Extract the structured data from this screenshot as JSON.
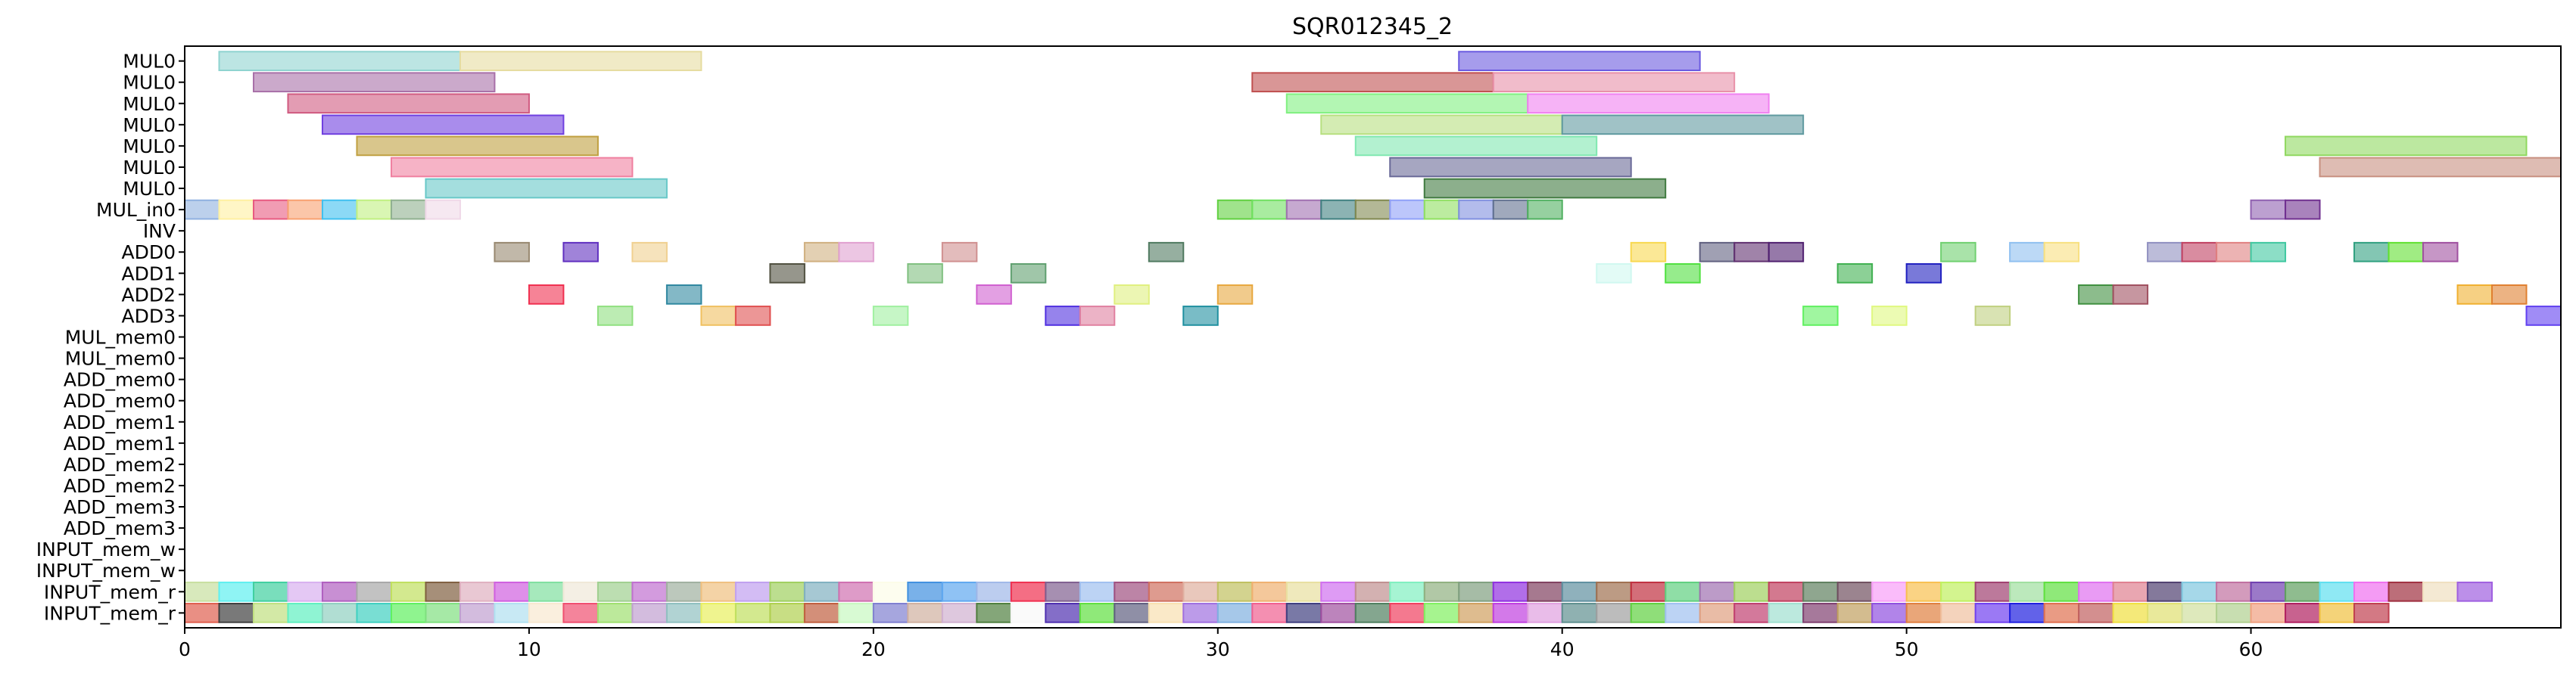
{
  "chart_data": {
    "type": "gantt",
    "title": "SQR012345_2",
    "xlabel": "",
    "ylabel": "",
    "xlim": [
      0,
      69
    ],
    "xticks": [
      0,
      10,
      20,
      30,
      40,
      50,
      60
    ],
    "grid": false,
    "rows": [
      "MUL0",
      "MUL0",
      "MUL0",
      "MUL0",
      "MUL0",
      "MUL0",
      "MUL0",
      "MUL_in0",
      "INV",
      "ADD0",
      "ADD1",
      "ADD2",
      "ADD3",
      "MUL_mem0",
      "MUL_mem0",
      "ADD_mem0",
      "ADD_mem0",
      "ADD_mem1",
      "ADD_mem1",
      "ADD_mem2",
      "ADD_mem2",
      "ADD_mem3",
      "ADD_mem3",
      "INPUT_mem_w",
      "INPUT_mem_w",
      "INPUT_mem_r",
      "INPUT_mem_r"
    ],
    "bars": [
      {
        "row": 0,
        "start": 1,
        "end": 8,
        "color": "#8fd3d0"
      },
      {
        "row": 0,
        "start": 8,
        "end": 15,
        "color": "#e6dca0"
      },
      {
        "row": 0,
        "start": 37,
        "end": 44,
        "color": "#6a5ae0"
      },
      {
        "row": 1,
        "start": 2,
        "end": 9,
        "color": "#a870a8"
      },
      {
        "row": 1,
        "start": 31,
        "end": 38,
        "color": "#c05050"
      },
      {
        "row": 1,
        "start": 38,
        "end": 45,
        "color": "#e890a8"
      },
      {
        "row": 2,
        "start": 3,
        "end": 10,
        "color": "#d05a80"
      },
      {
        "row": 2,
        "start": 32,
        "end": 39,
        "color": "#80f080"
      },
      {
        "row": 2,
        "start": 39,
        "end": 46,
        "color": "#f080f0"
      },
      {
        "row": 3,
        "start": 4,
        "end": 11,
        "color": "#7040e0"
      },
      {
        "row": 3,
        "start": 33,
        "end": 40,
        "color": "#b8e080"
      },
      {
        "row": 3,
        "start": 40,
        "end": 47,
        "color": "#609aa0"
      },
      {
        "row": 4,
        "start": 5,
        "end": 12,
        "color": "#c0a040"
      },
      {
        "row": 4,
        "start": 34,
        "end": 41,
        "color": "#80e8b0"
      },
      {
        "row": 4,
        "start": 61,
        "end": 68,
        "color": "#90d860"
      },
      {
        "row": 5,
        "start": 6,
        "end": 13,
        "color": "#f080a0"
      },
      {
        "row": 5,
        "start": 35,
        "end": 42,
        "color": "#6a6a98"
      },
      {
        "row": 5,
        "start": 62,
        "end": 69,
        "color": "#c89080"
      },
      {
        "row": 6,
        "start": 7,
        "end": 14,
        "color": "#68c8c8"
      },
      {
        "row": 6,
        "start": 36,
        "end": 43,
        "color": "#407a40"
      },
      {
        "row": 7,
        "start": 0,
        "end": 1,
        "color": "#90b0e0"
      },
      {
        "row": 7,
        "start": 1,
        "end": 2,
        "color": "#fff0a0"
      },
      {
        "row": 7,
        "start": 2,
        "end": 3,
        "color": "#e85a80"
      },
      {
        "row": 7,
        "start": 3,
        "end": 4,
        "color": "#f8a070"
      },
      {
        "row": 7,
        "start": 4,
        "end": 5,
        "color": "#40c0f0"
      },
      {
        "row": 7,
        "start": 5,
        "end": 6,
        "color": "#c0f080"
      },
      {
        "row": 7,
        "start": 6,
        "end": 7,
        "color": "#90b090"
      },
      {
        "row": 7,
        "start": 7,
        "end": 8,
        "color": "#f0d8e8"
      },
      {
        "row": 7,
        "start": 30,
        "end": 31,
        "color": "#60d040"
      },
      {
        "row": 7,
        "start": 31,
        "end": 32,
        "color": "#70e060"
      },
      {
        "row": 7,
        "start": 32,
        "end": 33,
        "color": "#a070b0"
      },
      {
        "row": 7,
        "start": 33,
        "end": 34,
        "color": "#408080"
      },
      {
        "row": 7,
        "start": 34,
        "end": 35,
        "color": "#808850"
      },
      {
        "row": 7,
        "start": 35,
        "end": 36,
        "color": "#90a0f8"
      },
      {
        "row": 7,
        "start": 36,
        "end": 37,
        "color": "#90e060"
      },
      {
        "row": 7,
        "start": 37,
        "end": 38,
        "color": "#8090e0"
      },
      {
        "row": 7,
        "start": 38,
        "end": 39,
        "color": "#607090"
      },
      {
        "row": 7,
        "start": 39,
        "end": 40,
        "color": "#50b060"
      },
      {
        "row": 7,
        "start": 60,
        "end": 61,
        "color": "#9060b0"
      },
      {
        "row": 7,
        "start": 61,
        "end": 62,
        "color": "#703090"
      },
      {
        "row": 9,
        "start": 9,
        "end": 10,
        "color": "#988870"
      },
      {
        "row": 9,
        "start": 11,
        "end": 12,
        "color": "#6030c0"
      },
      {
        "row": 9,
        "start": 13,
        "end": 14,
        "color": "#f0d090"
      },
      {
        "row": 9,
        "start": 18,
        "end": 19,
        "color": "#d0b080"
      },
      {
        "row": 9,
        "start": 19,
        "end": 20,
        "color": "#e0a0d0"
      },
      {
        "row": 9,
        "start": 22,
        "end": 23,
        "color": "#d09090"
      },
      {
        "row": 9,
        "start": 28,
        "end": 29,
        "color": "#507a60"
      },
      {
        "row": 9,
        "start": 42,
        "end": 43,
        "color": "#f8d850"
      },
      {
        "row": 9,
        "start": 44,
        "end": 45,
        "color": "#606080"
      },
      {
        "row": 9,
        "start": 45,
        "end": 46,
        "color": "#603070"
      },
      {
        "row": 9,
        "start": 46,
        "end": 47,
        "color": "#502070"
      },
      {
        "row": 9,
        "start": 51,
        "end": 52,
        "color": "#70d070"
      },
      {
        "row": 9,
        "start": 53,
        "end": 54,
        "color": "#90c0f0"
      },
      {
        "row": 9,
        "start": 54,
        "end": 55,
        "color": "#f8e080"
      },
      {
        "row": 9,
        "start": 57,
        "end": 58,
        "color": "#9090c0"
      },
      {
        "row": 9,
        "start": 58,
        "end": 59,
        "color": "#c04060"
      },
      {
        "row": 9,
        "start": 59,
        "end": 60,
        "color": "#e08080"
      },
      {
        "row": 9,
        "start": 60,
        "end": 61,
        "color": "#40c8a0"
      },
      {
        "row": 9,
        "start": 63,
        "end": 64,
        "color": "#30a080"
      },
      {
        "row": 9,
        "start": 64,
        "end": 65,
        "color": "#60e030"
      },
      {
        "row": 9,
        "start": 65,
        "end": 66,
        "color": "#a050a0"
      },
      {
        "row": 10,
        "start": 17,
        "end": 18,
        "color": "#505040"
      },
      {
        "row": 10,
        "start": 21,
        "end": 22,
        "color": "#80c080"
      },
      {
        "row": 10,
        "start": 24,
        "end": 25,
        "color": "#60a070"
      },
      {
        "row": 10,
        "start": 41,
        "end": 42,
        "color": "#d0f8f0"
      },
      {
        "row": 10,
        "start": 43,
        "end": 44,
        "color": "#50e040"
      },
      {
        "row": 10,
        "start": 48,
        "end": 49,
        "color": "#40b050"
      },
      {
        "row": 10,
        "start": 50,
        "end": 51,
        "color": "#2020c0"
      },
      {
        "row": 11,
        "start": 10,
        "end": 11,
        "color": "#f03050"
      },
      {
        "row": 11,
        "start": 14,
        "end": 15,
        "color": "#3088a0"
      },
      {
        "row": 11,
        "start": 23,
        "end": 24,
        "color": "#d060d0"
      },
      {
        "row": 11,
        "start": 27,
        "end": 28,
        "color": "#e0f080"
      },
      {
        "row": 11,
        "start": 30,
        "end": 31,
        "color": "#e8a840"
      },
      {
        "row": 11,
        "start": 55,
        "end": 56,
        "color": "#409040"
      },
      {
        "row": 11,
        "start": 56,
        "end": 57,
        "color": "#a05060"
      },
      {
        "row": 11,
        "start": 66,
        "end": 67,
        "color": "#f0b030"
      },
      {
        "row": 11,
        "start": 67,
        "end": 68,
        "color": "#e08030"
      },
      {
        "row": 12,
        "start": 12,
        "end": 13,
        "color": "#90e080"
      },
      {
        "row": 12,
        "start": 15,
        "end": 16,
        "color": "#f0c060"
      },
      {
        "row": 12,
        "start": 16,
        "end": 17,
        "color": "#e05050"
      },
      {
        "row": 12,
        "start": 20,
        "end": 21,
        "color": "#a0f0a0"
      },
      {
        "row": 12,
        "start": 25,
        "end": 26,
        "color": "#5030e0"
      },
      {
        "row": 12,
        "start": 26,
        "end": 27,
        "color": "#e080a0"
      },
      {
        "row": 12,
        "start": 29,
        "end": 30,
        "color": "#2090a0"
      },
      {
        "row": 12,
        "start": 47,
        "end": 48,
        "color": "#60f060"
      },
      {
        "row": 12,
        "start": 49,
        "end": 50,
        "color": "#e0f880"
      },
      {
        "row": 12,
        "start": 52,
        "end": 53,
        "color": "#c0d080"
      },
      {
        "row": 12,
        "start": 68,
        "end": 69,
        "color": "#6040f0"
      }
    ],
    "input_mem_r_colors": [
      [
        "#c8e0a0",
        "#60f0f0",
        "#40d0a0",
        "#d8b0f0",
        "#b060c0",
        "#a8a8a8",
        "#c0e060",
        "#806040",
        "#e0b0c0",
        "#d060e0",
        "#80e0a0",
        "#f0e8d8",
        "#a0d090",
        "#c070d0",
        "#a0b0a0",
        "#f0c080",
        "#c0a0f0",
        "#a0d060",
        "#80b0c0",
        "#d070b0",
        "#fcfce8",
        "#4090e0",
        "#60a8f0",
        "#a0b8e8",
        "#f03050",
        "#806090",
        "#a0c0f0",
        "#a05080",
        "#d07060",
        "#e0b0a0",
        "#c0c060",
        "#f0b070",
        "#e8e0a0",
        "#d070f0",
        "#c09090",
        "#80f0c0",
        "#90b080",
        "#80a080",
        "#9030e0",
        "#804060",
        "#6090a0",
        "#a07050",
        "#c03040",
        "#60d080",
        "#a070b0",
        "#a0d060",
        "#c04060",
        "#608060",
        "#705060",
        "#f8a0f8",
        "#f8c050",
        "#c0f060",
        "#a04070",
        "#a0e0a0",
        "#60e040",
        "#e070f0",
        "#e08090",
        "#504070",
        "#80c8e0",
        "#c070a0",
        "#7040b0",
        "#60a060",
        "#60e0f0",
        "#f070f0",
        "#a03040",
        "#f0e0c0",
        "#a060e0"
      ],
      [
        "#e06050",
        "#404040",
        "#c0e080",
        "#60f0c0",
        "#90d0c0",
        "#40d0c0",
        "#60f060",
        "#80e080",
        "#c0a0d0",
        "#b0e0f0",
        "#f8e8d0",
        "#f05070",
        "#a0e070",
        "#c0a0d0",
        "#90c0c0",
        "#e8f060",
        "#c0e060",
        "#b0d050",
        "#c06040",
        "#c8f8c0",
        "#8080d0",
        "#d0b0a0",
        "#d0b0d0",
        "#508040",
        "#f8f8f8",
        "#5030b0",
        "#60e040",
        "#606080",
        "#f8e0b0",
        "#a070e0",
        "#80b0e0",
        "#f06090",
        "#404080",
        "#a050a0",
        "#508060",
        "#f04060",
        "#80f060",
        "#d0a060",
        "#c040e0",
        "#e0a0e0",
        "#609090",
        "#a0a0a0",
        "#60d040",
        "#a0c0f0",
        "#e0a080",
        "#c04070",
        "#a0e0d0",
        "#804070",
        "#c0a060",
        "#9050e0",
        "#e08040",
        "#f0c0a0",
        "#7040f0",
        "#2020e0",
        "#e07050",
        "#c06060",
        "#f0e040",
        "#e0e070",
        "#d0e0a0",
        "#b0d090",
        "#f0a080",
        "#b02060",
        "#f0c040",
        "#c04050"
      ]
    ]
  }
}
